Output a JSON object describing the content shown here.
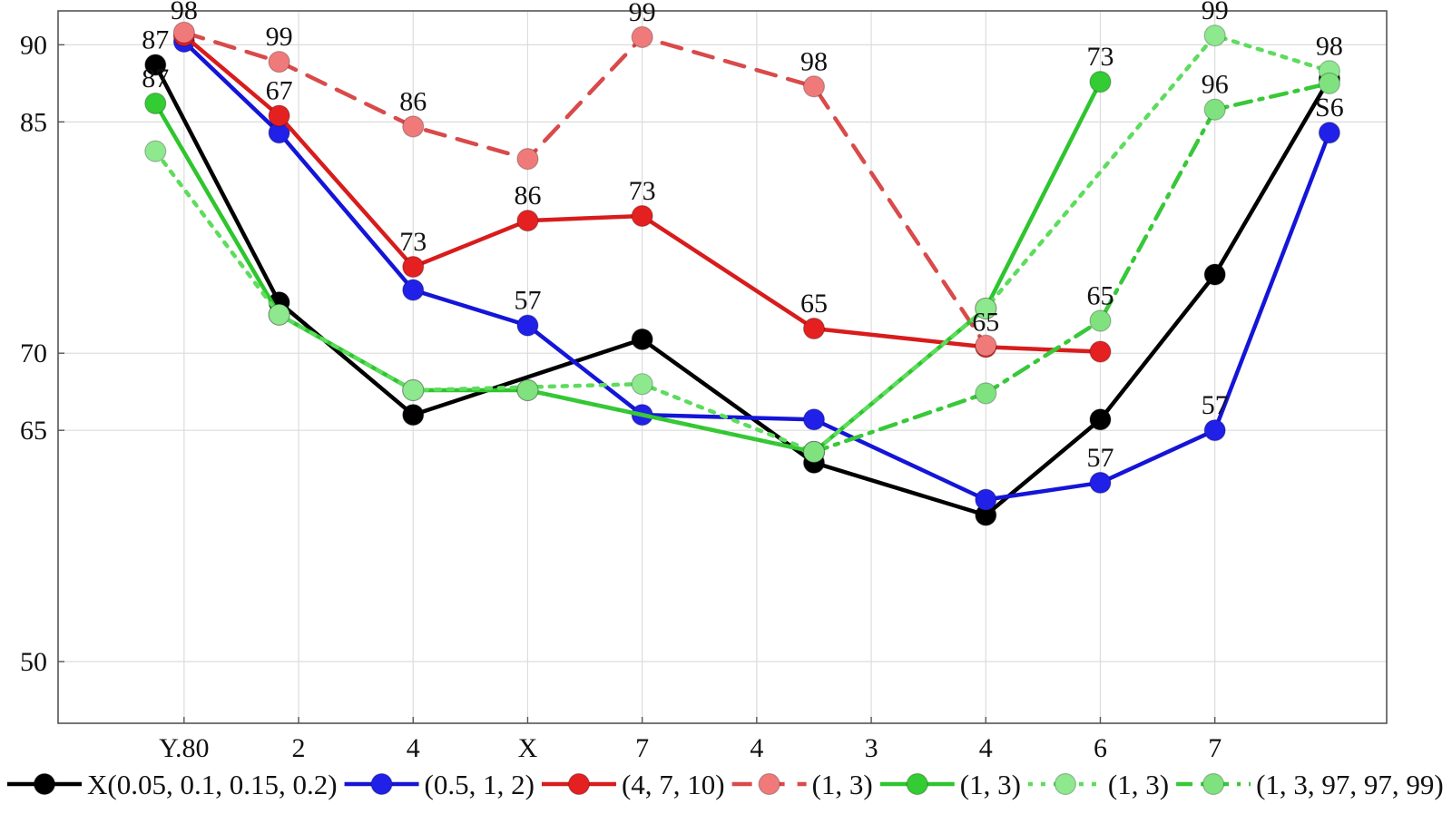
{
  "chart_data": {
    "type": "line",
    "categories": [
      "Y.80",
      "2",
      "4",
      "X",
      "7",
      "4",
      "3",
      "4",
      "6",
      "7"
    ],
    "y_tick_labels": [
      "50",
      "65",
      "70",
      "85",
      "90"
    ],
    "y_tick_values": [
      50,
      65,
      70,
      85,
      90
    ],
    "ylim": [
      46,
      92.2
    ],
    "grid": true,
    "legend_position": "bottom",
    "series": [
      {
        "legend": "X(0.05, 0.1, 0.15, 0.2)",
        "color": "#000000",
        "line_style": "solid",
        "marker_fill": "#000000",
        "marker_opacity": 1,
        "points": [
          {
            "x": 0.25,
            "y": 88.7
          },
          {
            "x": 1.33,
            "y": 73.3
          },
          {
            "x": 2.5,
            "y": 66.0
          },
          {
            "x": 4.5,
            "y": 70.9
          },
          {
            "x": 6.0,
            "y": 62.9
          },
          {
            "x": 7.5,
            "y": 59.5
          },
          {
            "x": 8.5,
            "y": 65.7
          },
          {
            "x": 9.5,
            "y": 75.1
          },
          {
            "x": 10.5,
            "y": 87.8
          }
        ],
        "labels": [
          {
            "i": 0,
            "text": "87"
          }
        ]
      },
      {
        "legend": "(0.5, 1, 2)",
        "color": "#1515d8",
        "line_style": "solid",
        "marker_fill": "#2020e8",
        "marker_opacity": 1,
        "points": [
          {
            "x": 0.5,
            "y": 90.2
          },
          {
            "x": 1.33,
            "y": 84.3
          },
          {
            "x": 2.5,
            "y": 74.1
          },
          {
            "x": 3.5,
            "y": 71.8
          },
          {
            "x": 4.5,
            "y": 66.0
          },
          {
            "x": 6.0,
            "y": 65.7
          },
          {
            "x": 7.5,
            "y": 60.5
          },
          {
            "x": 8.5,
            "y": 61.6
          },
          {
            "x": 9.5,
            "y": 65.0
          },
          {
            "x": 10.5,
            "y": 84.3
          }
        ],
        "labels": [
          {
            "i": 3,
            "text": "57"
          },
          {
            "i": 7,
            "text": "57"
          },
          {
            "i": 8,
            "text": "57"
          },
          {
            "i": 9,
            "text": "S6"
          }
        ]
      },
      {
        "legend": "(4, 7, 10)",
        "color": "#d81c1c",
        "line_style": "solid",
        "marker_fill": "#e52020",
        "marker_opacity": 1,
        "points": [
          {
            "x": 0.5,
            "y": 90.6
          },
          {
            "x": 1.33,
            "y": 85.4
          },
          {
            "x": 2.5,
            "y": 75.6
          },
          {
            "x": 3.5,
            "y": 78.6
          },
          {
            "x": 4.5,
            "y": 78.9
          },
          {
            "x": 6.0,
            "y": 71.6
          },
          {
            "x": 7.5,
            "y": 70.4
          },
          {
            "x": 8.5,
            "y": 70.1
          }
        ],
        "labels": [
          {
            "i": 0,
            "text": "98"
          },
          {
            "i": 1,
            "text": "67"
          },
          {
            "i": 2,
            "text": "73"
          },
          {
            "i": 3,
            "text": "86"
          },
          {
            "i": 4,
            "text": "73"
          },
          {
            "i": 5,
            "text": "65"
          },
          {
            "i": 6,
            "text": "65"
          }
        ]
      },
      {
        "legend": "(1, 3)",
        "color": "#d94a4a",
        "line_style": "dashed",
        "marker_fill": "#f07a7a",
        "marker_opacity": 1,
        "points": [
          {
            "x": 0.5,
            "y": 90.8
          },
          {
            "x": 1.33,
            "y": 88.9
          },
          {
            "x": 2.5,
            "y": 84.7
          },
          {
            "x": 3.5,
            "y": 82.6
          },
          {
            "x": 4.5,
            "y": 90.5
          },
          {
            "x": 6.0,
            "y": 87.3
          },
          {
            "x": 7.5,
            "y": 70.5
          }
        ],
        "labels": [
          {
            "i": 1,
            "text": "99"
          },
          {
            "i": 2,
            "text": "86"
          },
          {
            "i": 4,
            "text": "99"
          },
          {
            "i": 5,
            "text": "98"
          }
        ]
      },
      {
        "legend": "(1, 3)",
        "color": "#2ec52e",
        "line_style": "solid",
        "marker_fill": "#33cc33",
        "marker_opacity": 1,
        "points": [
          {
            "x": 0.25,
            "y": 86.2
          },
          {
            "x": 1.33,
            "y": 72.5
          },
          {
            "x": 2.5,
            "y": 67.6
          },
          {
            "x": 3.5,
            "y": 67.6
          },
          {
            "x": 6.0,
            "y": 63.6
          },
          {
            "x": 7.5,
            "y": 72.9
          },
          {
            "x": 8.5,
            "y": 87.6
          }
        ],
        "labels": [
          {
            "i": 0,
            "text": "87"
          },
          {
            "i": 6,
            "text": "73"
          }
        ]
      },
      {
        "legend": "(1, 3)",
        "color": "#5ddc5d",
        "line_style": "dotted",
        "marker_fill": "#8ee88e",
        "marker_opacity": 1,
        "points": [
          {
            "x": 0.25,
            "y": 83.1
          },
          {
            "x": 1.33,
            "y": 72.5
          },
          {
            "x": 2.5,
            "y": 67.6
          },
          {
            "x": 4.5,
            "y": 68.0
          },
          {
            "x": 6.0,
            "y": 63.6
          },
          {
            "x": 7.5,
            "y": 72.9
          },
          {
            "x": 9.5,
            "y": 90.6
          },
          {
            "x": 10.5,
            "y": 88.3
          }
        ],
        "labels": [
          {
            "i": 6,
            "text": "99"
          },
          {
            "i": 7,
            "text": "98"
          }
        ]
      },
      {
        "legend": "(1, 3, 97, 97, 99)",
        "color": "#38c838",
        "line_style": "dashdot",
        "marker_fill": "#7fe27f",
        "marker_opacity": 1,
        "points": [
          {
            "x": 3.5,
            "y": 67.6
          },
          {
            "x": 6.0,
            "y": 63.6
          },
          {
            "x": 7.5,
            "y": 67.4
          },
          {
            "x": 8.5,
            "y": 72.1
          },
          {
            "x": 9.5,
            "y": 85.8
          },
          {
            "x": 10.5,
            "y": 87.5
          }
        ],
        "labels": [
          {
            "i": 3,
            "text": "65"
          },
          {
            "i": 4,
            "text": "96"
          }
        ]
      }
    ]
  }
}
